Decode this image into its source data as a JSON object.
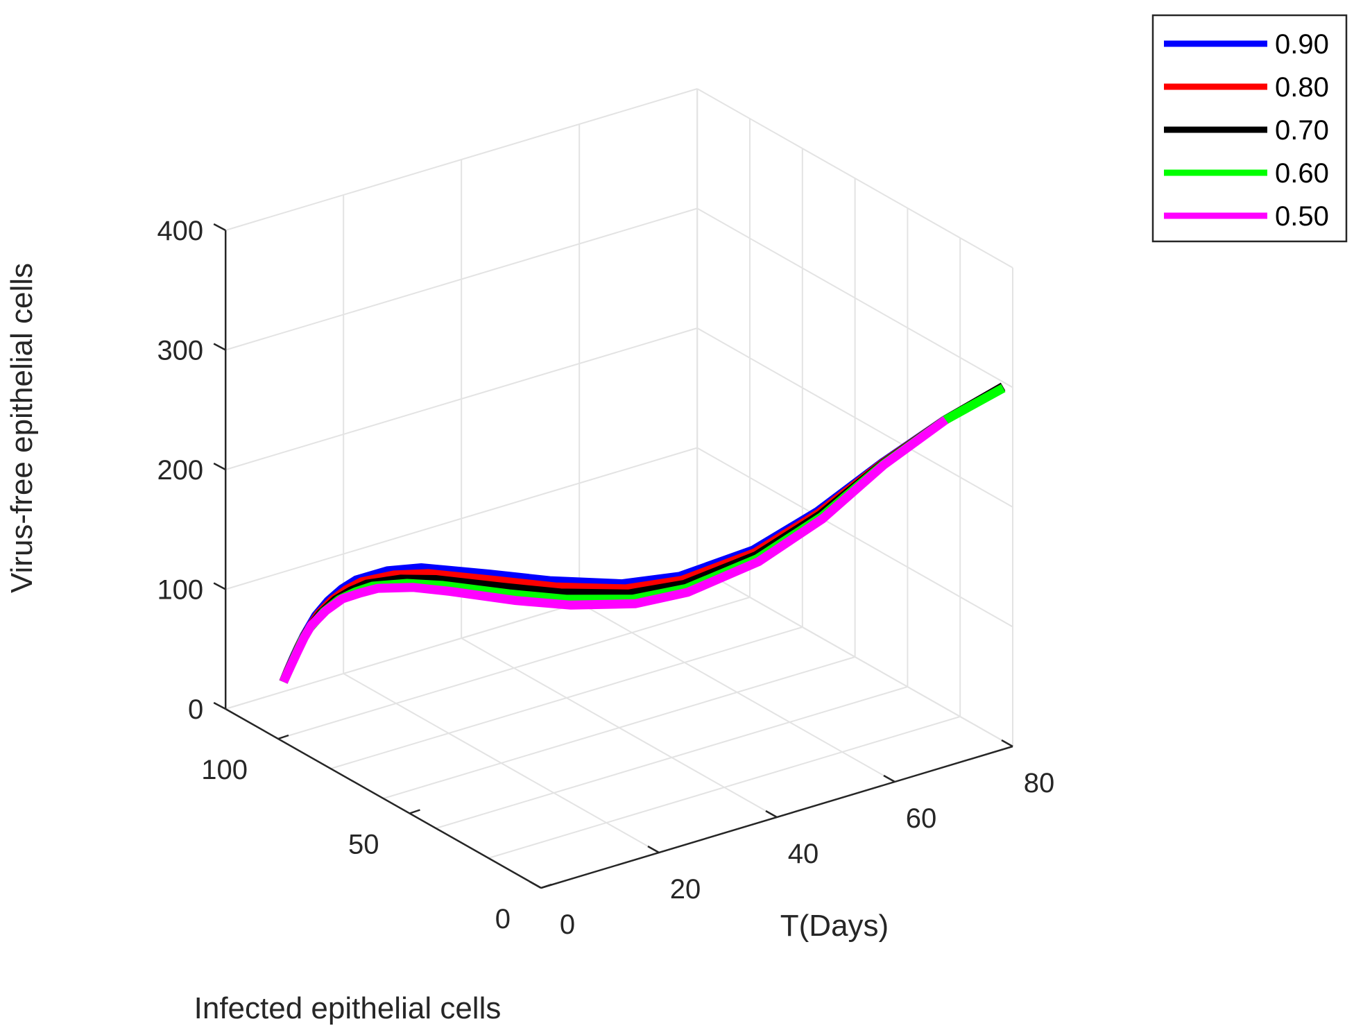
{
  "chart_data": {
    "type": "line3d",
    "title": "",
    "xlabel": "T(Days)",
    "ylabel": "Infected epithelial cells",
    "zlabel": "Virus-free epithelial cells",
    "xlim": [
      0,
      80
    ],
    "ylim": [
      0,
      120
    ],
    "zlim": [
      0,
      400
    ],
    "xticks": [
      0,
      20,
      40,
      60,
      80
    ],
    "yticks": [
      0,
      50,
      100
    ],
    "zticks": [
      0,
      100,
      200,
      300,
      400
    ],
    "xtick_labels": [
      "0",
      "20",
      "40",
      "60",
      "80"
    ],
    "ytick_labels": [
      "0",
      "50",
      "100"
    ],
    "ztick_labels": [
      "0",
      "100",
      "200",
      "300",
      "400"
    ],
    "grid": true,
    "legend_position": "top-right",
    "series": [
      {
        "name": "0.90",
        "color": "#0000ff",
        "t": [
          0,
          0.5,
          1,
          1.5,
          2,
          3,
          4,
          5,
          6,
          8,
          10,
          14,
          18,
          24,
          30,
          40,
          50,
          60,
          70,
          80
        ],
        "infected": [
          98,
          97.3,
          96.5,
          95.6,
          94.6,
          92.4,
          89.9,
          87,
          83.8,
          76.4,
          68,
          51,
          37,
          23,
          14.5,
          9,
          7,
          5,
          3.5,
          3.7
        ],
        "virus_free": [
          50,
          60,
          70,
          80,
          90,
          108,
          122,
          134,
          144,
          158,
          168,
          178,
          184,
          190,
          198,
          212,
          232,
          260,
          283,
          296
        ]
      },
      {
        "name": "0.80",
        "color": "#ff0000",
        "t": [
          0,
          0.5,
          1,
          1.5,
          2,
          3,
          4,
          5,
          6,
          8,
          10,
          14,
          18,
          24,
          30,
          40,
          50,
          60,
          70,
          80
        ],
        "infected": [
          98,
          97.1,
          96.1,
          95.1,
          93.9,
          91.4,
          88.5,
          85.3,
          81.8,
          73.9,
          65.3,
          48.5,
          34.9,
          21.7,
          13.7,
          8.5,
          6.5,
          4.8,
          3.4,
          3.7
        ],
        "virus_free": [
          50,
          60.9,
          71.8,
          82.6,
          92.8,
          110.3,
          124.1,
          135.4,
          144.9,
          157.6,
          166.5,
          175.7,
          181.4,
          187.4,
          195.6,
          210.2,
          231.1,
          259.9,
          283.2,
          296
        ]
      },
      {
        "name": "0.70",
        "color": "#000000",
        "t": [
          0,
          0.5,
          1,
          1.5,
          2,
          3,
          4,
          5,
          6,
          8,
          10,
          14,
          18,
          24,
          30,
          40,
          50,
          60,
          70,
          80
        ],
        "infected": [
          98,
          96.9,
          95.8,
          94.6,
          93.3,
          90.4,
          87.1,
          83.5,
          79.7,
          71.4,
          62.5,
          46,
          32.9,
          20.4,
          12.9,
          8,
          6,
          4.6,
          3.3,
          3.7
        ],
        "virus_free": [
          50,
          61.8,
          73.5,
          85.1,
          95.7,
          112.5,
          126.2,
          136.7,
          145.7,
          157.2,
          165,
          173.3,
          178.8,
          184.8,
          193.2,
          208.4,
          230.2,
          259.8,
          283.4,
          296
        ]
      },
      {
        "name": "0.60",
        "color": "#00ff00",
        "t": [
          0,
          0.5,
          1,
          1.5,
          2,
          3,
          4,
          5,
          6,
          8,
          10,
          14,
          18,
          24,
          30,
          40,
          50,
          60,
          70,
          80
        ],
        "infected": [
          98,
          96.7,
          95.4,
          94.1,
          92.6,
          89.4,
          85.7,
          81.8,
          77.6,
          68.9,
          59.8,
          43.5,
          30.8,
          19,
          12.1,
          7.5,
          5.5,
          4.4,
          3.2,
          3.6
        ],
        "virus_free": [
          50,
          62.7,
          75.3,
          87.7,
          98.5,
          114.8,
          128.3,
          138.1,
          146.6,
          156.8,
          163.5,
          170.8,
          176.2,
          182.2,
          190.8,
          206.6,
          229.3,
          259.7,
          283.6,
          295
        ]
      },
      {
        "name": "0.50",
        "color": "#ff00ff",
        "t": [
          0,
          0.5,
          1,
          1.5,
          2,
          3,
          4,
          5,
          6,
          8,
          10,
          14,
          18,
          24,
          30,
          40,
          50,
          60,
          70
        ],
        "infected": [
          98,
          96.5,
          95,
          93.5,
          92,
          88.5,
          84.5,
          80,
          75.5,
          66.5,
          57,
          41,
          29,
          18,
          11.5,
          7,
          5,
          4.2,
          3.1
        ],
        "virus_free": [
          50,
          63.6,
          77.1,
          90.3,
          101.4,
          117.1,
          130.4,
          139.4,
          147.4,
          156.4,
          162,
          168.4,
          173.6,
          179.6,
          188.4,
          204.8,
          228.4,
          259.6,
          283.8
        ]
      }
    ]
  }
}
